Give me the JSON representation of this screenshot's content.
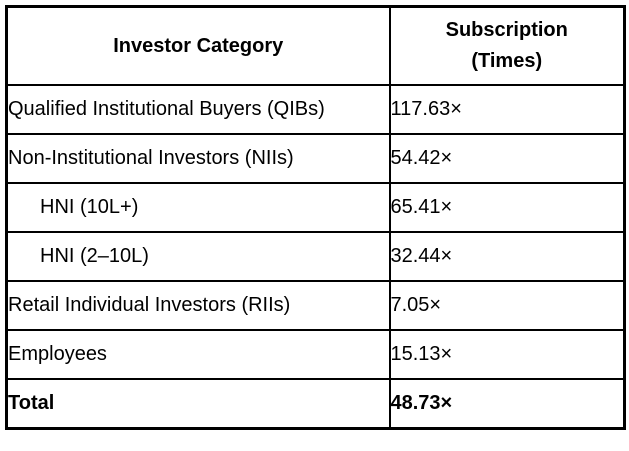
{
  "colors": {
    "border": "#000000",
    "background": "#ffffff",
    "text": "#000000"
  },
  "table": {
    "headers": {
      "category": "Investor Category",
      "subscription": "Subscription\n(Times)"
    },
    "rows": [
      {
        "category": "Qualified Institutional Buyers (QIBs)",
        "value": "117.63×"
      },
      {
        "category": "Non-Institutional Investors (NIIs)",
        "value": "54.42×"
      },
      {
        "category": "HNI (10L+)",
        "value": "65.41×",
        "indented": true
      },
      {
        "category": "HNI (2–10L)",
        "value": "32.44×",
        "indented": true
      },
      {
        "category": "Retail Individual Investors (RIIs)",
        "value": "7.05×"
      },
      {
        "category": "Employees",
        "value": "15.13×"
      },
      {
        "category": "Total",
        "value": "48.73×",
        "bold": true
      }
    ]
  },
  "chart_data": {
    "type": "table",
    "title": "",
    "columns": [
      "Investor Category",
      "Subscription (Times)"
    ],
    "categories": [
      "Qualified Institutional Buyers (QIBs)",
      "Non-Institutional Investors (NIIs)",
      "HNI (10L+)",
      "HNI (2–10L)",
      "Retail Individual Investors (RIIs)",
      "Employees",
      "Total"
    ],
    "values": [
      117.63,
      54.42,
      65.41,
      32.44,
      7.05,
      15.13,
      48.73
    ],
    "value_unit": "×",
    "notes": "HNI (10L+) and HNI (2–10L) are indented sub-rows of Non-Institutional Investors; Total row is bold"
  }
}
